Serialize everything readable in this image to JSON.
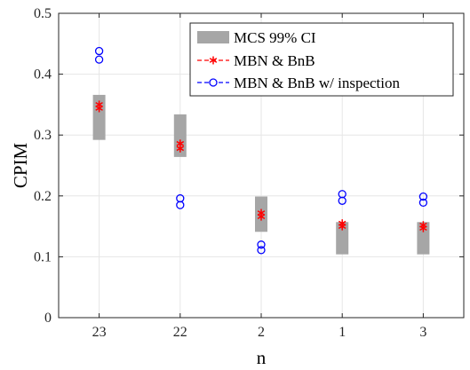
{
  "chart_data": {
    "type": "scatter",
    "title": "",
    "xlabel": "n",
    "ylabel": "CPIM",
    "categories": [
      "23",
      "22",
      "2",
      "1",
      "3"
    ],
    "ylim": [
      0,
      0.5
    ],
    "yticks": [
      "0",
      "0.1",
      "0.2",
      "0.3",
      "0.4",
      "0.5"
    ],
    "grid": true,
    "legend_position": "top-right",
    "series": [
      {
        "name": "MCS 99% CI",
        "kind": "interval-bar",
        "color": "#a6a6a6",
        "low": [
          0.292,
          0.264,
          0.141,
          0.104,
          0.104
        ],
        "high": [
          0.366,
          0.334,
          0.199,
          0.157,
          0.157
        ]
      },
      {
        "name": "MBN & BnB",
        "kind": "asterisk-marker",
        "color": "#ff0000",
        "values": [
          [
            0.344,
            0.35
          ],
          [
            0.278,
            0.286
          ],
          [
            0.166,
            0.172
          ],
          [
            0.15,
            0.155
          ],
          [
            0.147,
            0.152
          ]
        ]
      },
      {
        "name": "MBN & BnB w/ inspection",
        "kind": "circle-marker",
        "color": "#0000ff",
        "values": [
          [
            0.424,
            0.438
          ],
          [
            0.185,
            0.196
          ],
          [
            0.111,
            0.12
          ],
          [
            0.192,
            0.203
          ],
          [
            0.189,
            0.199
          ]
        ]
      }
    ]
  }
}
